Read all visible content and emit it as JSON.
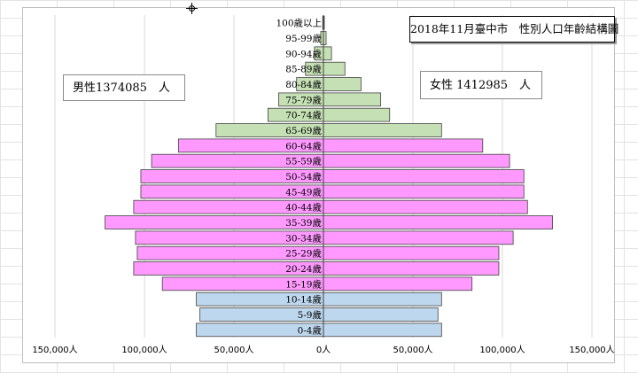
{
  "chart_data": {
    "type": "bar",
    "orientation": "horizontal-population-pyramid",
    "title": "2018年11月臺中市　性別人口年齡結構圖",
    "male_total_label": "男性1374085　人",
    "female_total_label": "女性 1412985　人",
    "categories": [
      "0-4歲",
      "5-9歲",
      "10-14歲",
      "15-19歲",
      "20-24歲",
      "25-29歲",
      "30-34歲",
      "35-39歲",
      "40-44歲",
      "45-49歲",
      "50-54歲",
      "55-59歲",
      "60-64歲",
      "65-69歲",
      "70-74歲",
      "75-79歲",
      "80-84歲",
      "85-89歲",
      "90-94歲",
      "95-99歲",
      "100歲以上"
    ],
    "series": [
      {
        "name": "男性",
        "values": [
          71000,
          69000,
          71000,
          90000,
          106000,
          104000,
          105000,
          122000,
          106000,
          102000,
          102000,
          96000,
          81000,
          60000,
          31000,
          25000,
          15000,
          10000,
          5000,
          1500,
          400
        ]
      },
      {
        "name": "女性",
        "values": [
          66000,
          64000,
          66000,
          83000,
          98000,
          98000,
          106000,
          128000,
          114000,
          112000,
          112000,
          104000,
          89000,
          66000,
          37000,
          32000,
          21000,
          12000,
          4500,
          1500,
          500
        ]
      }
    ],
    "age_groups": [
      "child",
      "child",
      "child",
      "working",
      "working",
      "working",
      "working",
      "working",
      "working",
      "working",
      "working",
      "working",
      "working",
      "elderly",
      "elderly",
      "elderly",
      "elderly",
      "elderly",
      "elderly",
      "elderly",
      "elderly"
    ],
    "xlim": [
      -150000,
      150000
    ],
    "x_ticks": [
      -150000,
      -100000,
      -50000,
      0,
      50000,
      100000,
      150000
    ],
    "x_tick_labels": [
      "150,000人",
      "100,000人",
      "50,000人",
      "0人",
      "50,000人",
      "100,000人",
      "150,000人"
    ],
    "colors": {
      "child": "#bdd7ee",
      "working": "#ff99ff",
      "elderly": "#c5e0b4",
      "border": "#404040",
      "grid": "#d9d9d9"
    }
  }
}
